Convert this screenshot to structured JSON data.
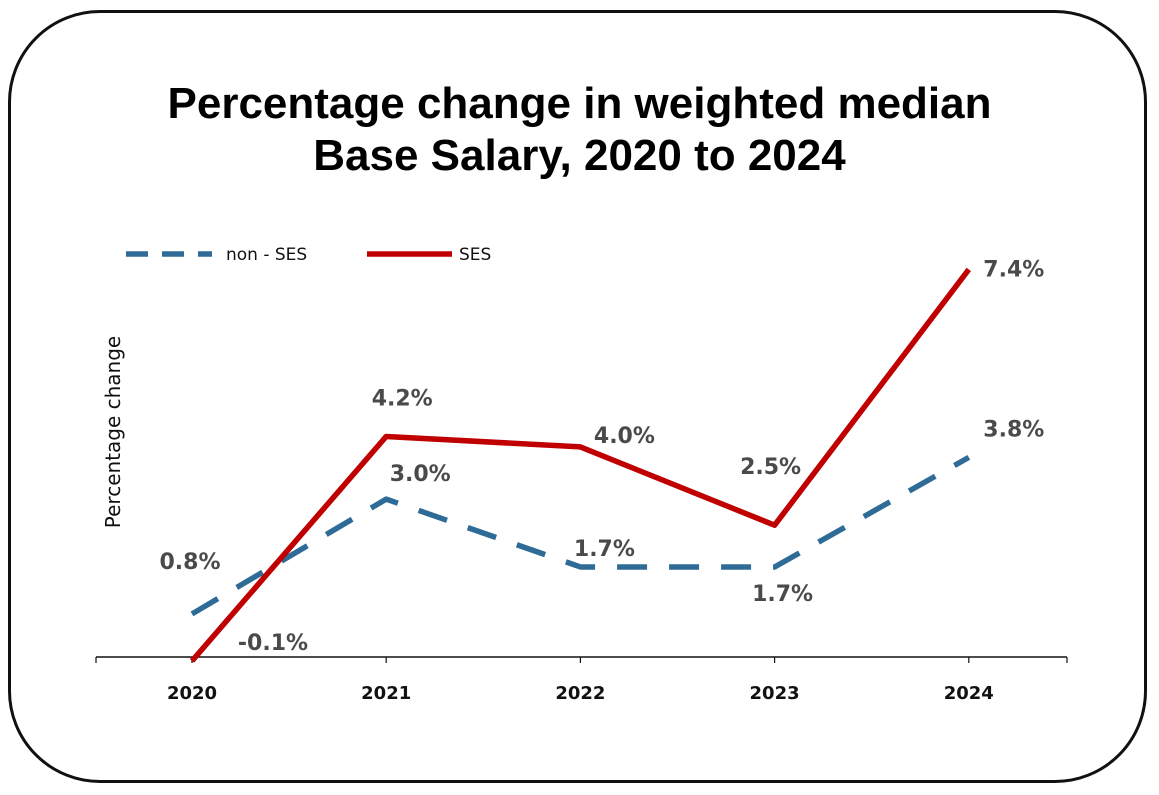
{
  "chart_data": {
    "type": "line",
    "title": "Percentage change in weighted median Base Salary, 2020 to 2024",
    "title_lines": [
      "Percentage change in weighted median",
      "Base Salary, 2020 to 2024"
    ],
    "ylabel": "Percentage change",
    "xlabel": "",
    "categories": [
      "2020",
      "2021",
      "2022",
      "2023",
      "2024"
    ],
    "ylim": [
      -0.1,
      7.4
    ],
    "grid": false,
    "legend_position": "top-left",
    "series": [
      {
        "name": "non - SES",
        "values": [
          0.8,
          3.0,
          1.7,
          1.7,
          3.8
        ],
        "labels": [
          "0.8%",
          "3.0%",
          "1.7%",
          "1.7%",
          "3.8%"
        ],
        "color": "#2e6b96",
        "style": "dashed"
      },
      {
        "name": "SES",
        "values": [
          -0.1,
          4.2,
          4.0,
          2.5,
          7.4
        ],
        "labels": [
          "-0.1%",
          "4.2%",
          "4.0%",
          "2.5%",
          "7.4%"
        ],
        "color": "#c00000",
        "style": "solid"
      }
    ]
  }
}
